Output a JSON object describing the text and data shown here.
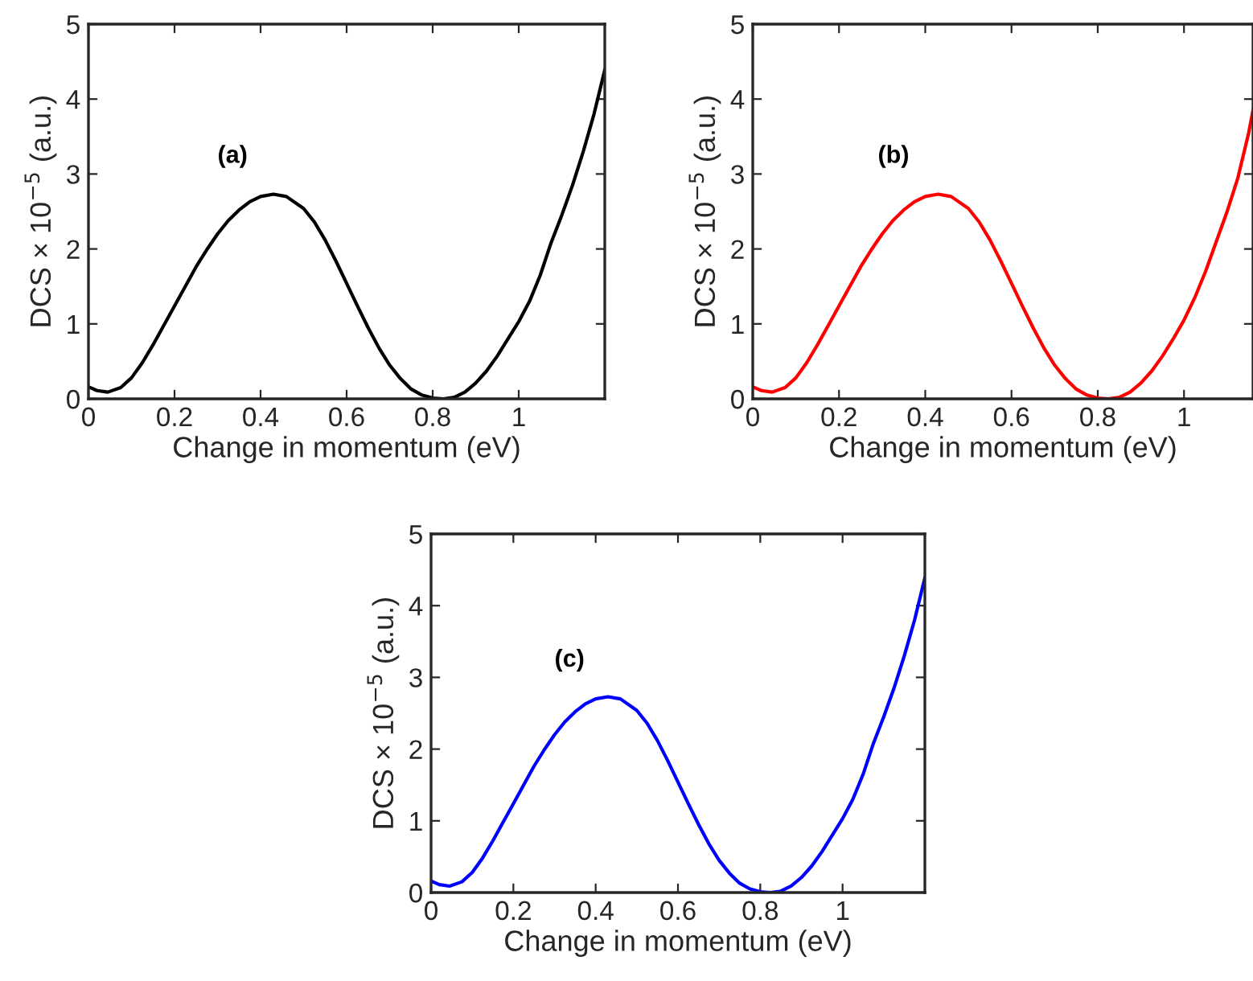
{
  "chart_data": [
    {
      "type": "line",
      "xlabel": "Change in momentum (eV)",
      "ylabel": "DCS × 10$^{−5}$ (a.u.)",
      "annotations": [
        "(a)"
      ],
      "x": [
        0,
        0.02,
        0.045,
        0.075,
        0.1,
        0.125,
        0.15,
        0.175,
        0.2,
        0.225,
        0.25,
        0.275,
        0.3,
        0.325,
        0.35,
        0.375,
        0.4,
        0.43,
        0.46,
        0.5,
        0.525,
        0.55,
        0.575,
        0.6,
        0.625,
        0.65,
        0.675,
        0.7,
        0.725,
        0.75,
        0.775,
        0.8,
        0.825,
        0.85,
        0.875,
        0.9,
        0.925,
        0.95,
        0.975,
        1.0,
        1.025,
        1.05,
        1.075,
        1.1,
        1.125,
        1.15,
        1.175,
        1.2
      ],
      "series": [
        {
          "color": "#000000",
          "values": [
            0.16,
            0.11,
            0.09,
            0.15,
            0.28,
            0.48,
            0.72,
            0.98,
            1.24,
            1.5,
            1.76,
            1.99,
            2.2,
            2.38,
            2.52,
            2.63,
            2.7,
            2.73,
            2.7,
            2.54,
            2.36,
            2.12,
            1.84,
            1.54,
            1.24,
            0.95,
            0.68,
            0.45,
            0.27,
            0.13,
            0.05,
            0.01,
            0,
            0.02,
            0.09,
            0.21,
            0.37,
            0.57,
            0.8,
            1.03,
            1.3,
            1.65,
            2.08,
            2.45,
            2.85,
            3.3,
            3.8,
            4.39
          ]
        }
      ],
      "xlim": [
        0,
        1.2
      ],
      "ylim": [
        0,
        5
      ],
      "xticks": [
        0,
        0.2,
        0.4,
        0.6,
        0.8,
        1
      ],
      "yticks": [
        0,
        1,
        2,
        3,
        4,
        5
      ]
    },
    {
      "type": "line",
      "xlabel": "Change in momentum (eV)",
      "ylabel": "DCS × 10$^{−5}$ (a.u.)",
      "annotations": [
        "(b)"
      ],
      "x": [
        0,
        0.02,
        0.045,
        0.075,
        0.1,
        0.125,
        0.15,
        0.175,
        0.2,
        0.225,
        0.25,
        0.275,
        0.3,
        0.325,
        0.35,
        0.375,
        0.4,
        0.43,
        0.46,
        0.5,
        0.525,
        0.55,
        0.575,
        0.6,
        0.625,
        0.65,
        0.675,
        0.7,
        0.725,
        0.75,
        0.775,
        0.8,
        0.825,
        0.85,
        0.875,
        0.9,
        0.925,
        0.95,
        0.975,
        1.0,
        1.025,
        1.05,
        1.075,
        1.1,
        1.125,
        1.15,
        1.16
      ],
      "series": [
        {
          "color": "#ff0000",
          "values": [
            0.16,
            0.11,
            0.09,
            0.15,
            0.28,
            0.48,
            0.72,
            0.98,
            1.24,
            1.5,
            1.76,
            1.99,
            2.2,
            2.38,
            2.52,
            2.63,
            2.7,
            2.73,
            2.7,
            2.54,
            2.36,
            2.12,
            1.84,
            1.54,
            1.24,
            0.95,
            0.68,
            0.45,
            0.27,
            0.13,
            0.05,
            0.01,
            0,
            0.02,
            0.09,
            0.21,
            0.37,
            0.57,
            0.8,
            1.05,
            1.35,
            1.7,
            2.1,
            2.5,
            2.95,
            3.55,
            3.85
          ]
        }
      ],
      "xlim": [
        0,
        1.16
      ],
      "ylim": [
        0,
        5
      ],
      "xticks": [
        0,
        0.2,
        0.4,
        0.6,
        0.8,
        1
      ],
      "yticks": [
        0,
        1,
        2,
        3,
        4,
        5
      ]
    },
    {
      "type": "line",
      "xlabel": "Change in momentum (eV)",
      "ylabel": "DCS × 10$^{−5}$ (a.u.)",
      "annotations": [
        "(c)"
      ],
      "x": [
        0,
        0.02,
        0.045,
        0.075,
        0.1,
        0.125,
        0.15,
        0.175,
        0.2,
        0.225,
        0.25,
        0.275,
        0.3,
        0.325,
        0.35,
        0.375,
        0.4,
        0.43,
        0.46,
        0.5,
        0.525,
        0.55,
        0.575,
        0.6,
        0.625,
        0.65,
        0.675,
        0.7,
        0.725,
        0.75,
        0.775,
        0.8,
        0.825,
        0.85,
        0.875,
        0.9,
        0.925,
        0.95,
        0.975,
        1.0,
        1.025,
        1.05,
        1.075,
        1.1,
        1.125,
        1.15,
        1.175,
        1.2
      ],
      "series": [
        {
          "color": "#0000ff",
          "values": [
            0.16,
            0.11,
            0.09,
            0.15,
            0.28,
            0.48,
            0.72,
            0.98,
            1.24,
            1.5,
            1.76,
            1.99,
            2.2,
            2.38,
            2.52,
            2.63,
            2.7,
            2.73,
            2.7,
            2.54,
            2.36,
            2.12,
            1.84,
            1.54,
            1.24,
            0.95,
            0.68,
            0.45,
            0.27,
            0.13,
            0.05,
            0.01,
            0,
            0.02,
            0.09,
            0.21,
            0.37,
            0.57,
            0.8,
            1.03,
            1.3,
            1.65,
            2.08,
            2.45,
            2.85,
            3.3,
            3.8,
            4.39
          ]
        }
      ],
      "xlim": [
        0,
        1.2
      ],
      "ylim": [
        0,
        5
      ],
      "xticks": [
        0,
        0.2,
        0.4,
        0.6,
        0.8,
        1
      ],
      "yticks": [
        0,
        1,
        2,
        3,
        4,
        5
      ]
    }
  ]
}
